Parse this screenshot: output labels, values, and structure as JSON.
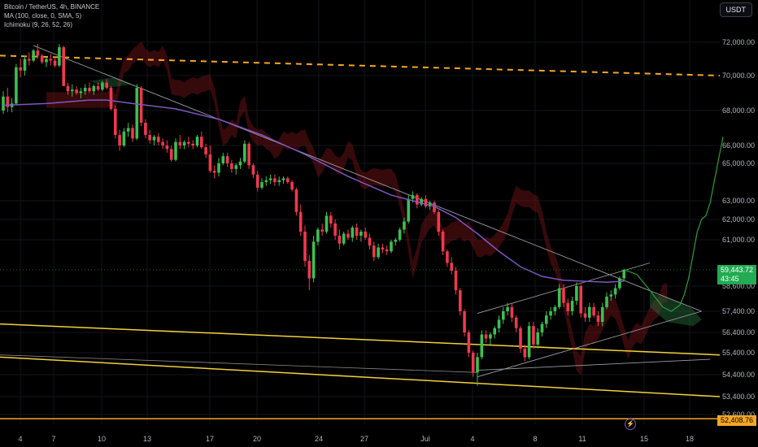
{
  "legend": {
    "symbol": "Bitcoin / TetherUS, 4h, BINANCE",
    "ma": "MA (100, close, 0, SMA, 5)",
    "ichimoku": "Ichimoku (9, 26, 52, 26)"
  },
  "currency_button": "USDT",
  "current_price": {
    "price": "59,443.72",
    "countdown": "43:45"
  },
  "level_label": "52,408.76",
  "colors": {
    "up": "#26a69a",
    "down": "#ef5350",
    "green_candle": "#3dbf50",
    "red_candle": "#f0384e",
    "ma": "#7e57c2",
    "yellow": "#f2d13b",
    "orange": "#f5a623"
  },
  "icons": {
    "alert": "lightning-icon"
  },
  "chart_data": {
    "type": "candlestick",
    "x_ticks": [
      "4",
      "7",
      "10",
      "13",
      "17",
      "20",
      "24",
      "27",
      "Jul",
      "4",
      "8",
      "11",
      "15",
      "18"
    ],
    "y_ticks": [
      "72,000.00",
      "70,000.00",
      "68,000.00",
      "66,000.00",
      "65,000.00",
      "63,000.00",
      "62,000.00",
      "61,000.00",
      "58,600.00",
      "57,400.00",
      "56,400.00",
      "55,400.00",
      "54,400.00",
      "53,400.00",
      "52,600.00"
    ],
    "price_axis_anchors": [
      [
        72000,
        52
      ],
      [
        70000,
        93
      ],
      [
        68000,
        136
      ],
      [
        66000,
        179
      ],
      [
        65000,
        201
      ],
      [
        63000,
        247
      ],
      [
        62000,
        270
      ],
      [
        61000,
        295
      ],
      [
        58600,
        352
      ],
      [
        57400,
        383
      ],
      [
        56400,
        409
      ],
      [
        55400,
        434
      ],
      [
        54400,
        461
      ],
      [
        53400,
        488
      ],
      [
        52600,
        510
      ]
    ],
    "date_axis_anchors": [
      [
        "4",
        25
      ],
      [
        "7",
        66
      ],
      [
        "10",
        125
      ],
      [
        "13",
        181
      ],
      [
        "17",
        258
      ],
      [
        "20",
        316
      ],
      [
        "24",
        392
      ],
      [
        "27",
        448
      ],
      [
        "Jul",
        523
      ],
      [
        "4",
        581
      ],
      [
        "8",
        658
      ],
      [
        "11",
        716
      ],
      [
        "15",
        792
      ],
      [
        "18",
        848
      ]
    ],
    "candles": [
      [
        0,
        68000,
        69100,
        67800,
        68800
      ],
      [
        1,
        68800,
        69300,
        67900,
        68200
      ],
      [
        2,
        68200,
        68700,
        67900,
        68400
      ],
      [
        3,
        68400,
        70700,
        68300,
        70500
      ],
      [
        4,
        70500,
        71000,
        69900,
        70300
      ],
      [
        5,
        70300,
        71200,
        70000,
        71000
      ],
      [
        6,
        71000,
        71400,
        70600,
        70900
      ],
      [
        7,
        70900,
        71600,
        70800,
        71500
      ],
      [
        8,
        71500,
        71900,
        71000,
        71200
      ],
      [
        9,
        71200,
        71300,
        70700,
        70800
      ],
      [
        10,
        70800,
        71100,
        70500,
        71000
      ],
      [
        11,
        71000,
        71300,
        70600,
        70900
      ],
      [
        12,
        70900,
        71100,
        70500,
        70600
      ],
      [
        13,
        70600,
        71900,
        70500,
        71700
      ],
      [
        14,
        71700,
        71800,
        69400,
        69400
      ],
      [
        15,
        69400,
        69600,
        68900,
        69100
      ],
      [
        16,
        69100,
        69500,
        68800,
        69200
      ],
      [
        17,
        69200,
        69400,
        68900,
        69000
      ],
      [
        18,
        69000,
        69300,
        68700,
        69100
      ],
      [
        19,
        69100,
        69500,
        68900,
        69300
      ],
      [
        20,
        69300,
        69600,
        69000,
        69100
      ],
      [
        21,
        69100,
        69500,
        68900,
        69400
      ],
      [
        22,
        69400,
        69600,
        69100,
        69200
      ],
      [
        23,
        69200,
        69700,
        69100,
        69600
      ],
      [
        24,
        69600,
        69800,
        69200,
        69300
      ],
      [
        25,
        69300,
        69400,
        68000,
        68100
      ],
      [
        26,
        68100,
        68300,
        66400,
        66600
      ],
      [
        27,
        66600,
        66900,
        65700,
        66000
      ],
      [
        28,
        66000,
        67000,
        65900,
        66800
      ],
      [
        29,
        66800,
        67300,
        66500,
        67000
      ],
      [
        30,
        67000,
        67200,
        66200,
        66400
      ],
      [
        31,
        66400,
        69500,
        66300,
        69300
      ],
      [
        32,
        69300,
        69400,
        67100,
        67300
      ],
      [
        33,
        67300,
        67500,
        66400,
        66600
      ],
      [
        34,
        66600,
        66900,
        66100,
        66300
      ],
      [
        35,
        66300,
        66600,
        66000,
        66500
      ],
      [
        36,
        66500,
        66700,
        66000,
        66200
      ],
      [
        37,
        66200,
        66400,
        65800,
        66000
      ],
      [
        38,
        66000,
        66300,
        65600,
        65800
      ],
      [
        39,
        65800,
        66000,
        65100,
        65200
      ],
      [
        40,
        65200,
        66400,
        65100,
        66200
      ],
      [
        41,
        66200,
        66600,
        65800,
        66000
      ],
      [
        42,
        66000,
        66300,
        65800,
        66200
      ],
      [
        43,
        66200,
        66500,
        65900,
        66100
      ],
      [
        44,
        66100,
        66300,
        65800,
        66000
      ],
      [
        45,
        66000,
        66600,
        65900,
        66500
      ],
      [
        46,
        66500,
        66800,
        65800,
        65900
      ],
      [
        47,
        65900,
        66100,
        65300,
        65500
      ],
      [
        48,
        65500,
        66000,
        64500,
        64600
      ],
      [
        49,
        64600,
        64900,
        64200,
        64500
      ],
      [
        50,
        64500,
        65300,
        64300,
        65000
      ],
      [
        51,
        65000,
        65600,
        64900,
        65400
      ],
      [
        52,
        65400,
        65600,
        64800,
        65000
      ],
      [
        53,
        65000,
        65200,
        64500,
        64700
      ],
      [
        54,
        64700,
        65000,
        64400,
        64900
      ],
      [
        55,
        64900,
        65300,
        64700,
        65100
      ],
      [
        56,
        65100,
        66300,
        65000,
        66100
      ],
      [
        57,
        66100,
        66200,
        64700,
        64900
      ],
      [
        58,
        64900,
        65000,
        64200,
        64400
      ],
      [
        59,
        64400,
        64600,
        63500,
        63700
      ],
      [
        60,
        63700,
        64200,
        63600,
        64000
      ],
      [
        61,
        64000,
        64300,
        63800,
        64100
      ],
      [
        62,
        64100,
        64400,
        63900,
        64200
      ],
      [
        63,
        64200,
        64400,
        63800,
        64000
      ],
      [
        64,
        64000,
        64300,
        63800,
        64100
      ],
      [
        65,
        64100,
        64300,
        63900,
        64200
      ],
      [
        66,
        64200,
        64300,
        63900,
        64000
      ],
      [
        67,
        64000,
        64100,
        63500,
        63600
      ],
      [
        68,
        63600,
        63700,
        62200,
        62400
      ],
      [
        69,
        62400,
        62800,
        61200,
        61400
      ],
      [
        70,
        61400,
        61700,
        59600,
        59900
      ],
      [
        71,
        59900,
        60200,
        58400,
        59000
      ],
      [
        72,
        59000,
        61200,
        58800,
        60900
      ],
      [
        73,
        60900,
        61600,
        60700,
        61500
      ],
      [
        74,
        61500,
        61800,
        61200,
        61400
      ],
      [
        75,
        61400,
        62400,
        61300,
        62200
      ],
      [
        76,
        62200,
        62400,
        61600,
        61800
      ],
      [
        77,
        61800,
        62000,
        61000,
        61200
      ],
      [
        78,
        61200,
        61500,
        60500,
        60800
      ],
      [
        79,
        60800,
        61400,
        60700,
        61300
      ],
      [
        80,
        61300,
        61500,
        61000,
        61100
      ],
      [
        81,
        61100,
        61700,
        60900,
        61600
      ],
      [
        82,
        61600,
        61800,
        61000,
        61200
      ],
      [
        83,
        61200,
        61500,
        60900,
        61400
      ],
      [
        84,
        61400,
        61600,
        61000,
        61100
      ],
      [
        85,
        61100,
        61300,
        60500,
        60700
      ],
      [
        86,
        60700,
        60900,
        59900,
        60100
      ],
      [
        87,
        60100,
        60800,
        60000,
        60600
      ],
      [
        88,
        60600,
        60800,
        60300,
        60500
      ],
      [
        89,
        60500,
        60700,
        60200,
        60400
      ],
      [
        90,
        60400,
        61000,
        60300,
        60900
      ],
      [
        91,
        60900,
        61100,
        60700,
        61000
      ],
      [
        92,
        61000,
        61600,
        60900,
        61500
      ],
      [
        93,
        61500,
        62100,
        61300,
        61900
      ],
      [
        94,
        61900,
        63300,
        61800,
        63100
      ],
      [
        95,
        63100,
        63500,
        62900,
        63300
      ],
      [
        96,
        63300,
        63400,
        62600,
        62800
      ],
      [
        97,
        62800,
        63200,
        62700,
        63100
      ],
      [
        98,
        63100,
        63300,
        62600,
        62700
      ],
      [
        99,
        62700,
        63000,
        62500,
        62900
      ],
      [
        100,
        62900,
        63000,
        62300,
        62400
      ],
      [
        101,
        62400,
        62500,
        61200,
        61400
      ],
      [
        102,
        61400,
        61500,
        60200,
        60400
      ],
      [
        103,
        60400,
        60500,
        59600,
        59800
      ],
      [
        104,
        59800,
        60100,
        59200,
        59400
      ],
      [
        105,
        59400,
        59600,
        58200,
        58400
      ],
      [
        106,
        58400,
        58500,
        57200,
        57400
      ],
      [
        107,
        57400,
        57500,
        56200,
        56400
      ],
      [
        108,
        56400,
        56500,
        55200,
        55400
      ],
      [
        109,
        55400,
        55500,
        54300,
        54500
      ],
      [
        110,
        54500,
        55400,
        53900,
        55200
      ],
      [
        111,
        55200,
        56500,
        55100,
        56300
      ],
      [
        112,
        56300,
        56500,
        55900,
        56100
      ],
      [
        113,
        56100,
        56400,
        55800,
        56300
      ],
      [
        114,
        56300,
        56700,
        56100,
        56600
      ],
      [
        115,
        56600,
        57200,
        56400,
        57000
      ],
      [
        116,
        57000,
        57600,
        56800,
        57400
      ],
      [
        117,
        57400,
        57800,
        57200,
        57600
      ],
      [
        118,
        57600,
        57800,
        56900,
        57100
      ],
      [
        119,
        57100,
        57200,
        56400,
        56600
      ],
      [
        120,
        56600,
        56700,
        55400,
        55600
      ],
      [
        121,
        55600,
        55800,
        55000,
        55200
      ],
      [
        122,
        55200,
        56900,
        55100,
        56700
      ],
      [
        123,
        56700,
        56900,
        55600,
        55800
      ],
      [
        124,
        55800,
        56600,
        55600,
        56400
      ],
      [
        125,
        56400,
        56900,
        56200,
        56800
      ],
      [
        126,
        56800,
        57400,
        56600,
        57200
      ],
      [
        127,
        57200,
        57600,
        57000,
        57400
      ],
      [
        128,
        57400,
        57700,
        57200,
        57600
      ],
      [
        129,
        57600,
        58700,
        57500,
        58500
      ],
      [
        130,
        58500,
        58700,
        57600,
        57800
      ],
      [
        131,
        57800,
        58000,
        57200,
        57400
      ],
      [
        132,
        57400,
        58100,
        57200,
        57900
      ],
      [
        133,
        57900,
        58800,
        57700,
        58600
      ],
      [
        134,
        58600,
        58700,
        57100,
        57300
      ],
      [
        135,
        57300,
        57600,
        56900,
        57100
      ],
      [
        136,
        57100,
        57800,
        56900,
        57600
      ],
      [
        137,
        57600,
        57800,
        57100,
        57200
      ],
      [
        138,
        57200,
        57400,
        56700,
        56900
      ],
      [
        139,
        56900,
        57800,
        56700,
        57600
      ],
      [
        140,
        57600,
        58300,
        57500,
        58100
      ],
      [
        141,
        58100,
        58400,
        57900,
        58200
      ],
      [
        142,
        58200,
        58700,
        58000,
        58500
      ],
      [
        143,
        58500,
        59100,
        58400,
        59000
      ],
      [
        144,
        59000,
        59500,
        58900,
        59443.72
      ]
    ],
    "ma_100": [
      [
        0,
        68300
      ],
      [
        10,
        68400
      ],
      [
        20,
        68600
      ],
      [
        24,
        68600
      ],
      [
        30,
        68400
      ],
      [
        40,
        68100
      ],
      [
        50,
        67500
      ],
      [
        60,
        66600
      ],
      [
        70,
        65500
      ],
      [
        80,
        64300
      ],
      [
        90,
        63300
      ],
      [
        100,
        62700
      ],
      [
        105,
        62100
      ],
      [
        110,
        61300
      ],
      [
        115,
        60400
      ],
      [
        120,
        59600
      ],
      [
        125,
        59100
      ],
      [
        130,
        58900
      ],
      [
        135,
        58850
      ],
      [
        140,
        58800
      ],
      [
        144,
        58850
      ]
    ],
    "projection_path": [
      [
        144,
        59450
      ],
      [
        147,
        59200
      ],
      [
        150,
        58400
      ],
      [
        153,
        57600
      ],
      [
        155,
        57400
      ],
      [
        157,
        57700
      ],
      [
        158,
        58200
      ],
      [
        159,
        59000
      ],
      [
        160,
        60200
      ],
      [
        161,
        61400
      ],
      [
        162,
        62000
      ],
      [
        163,
        62200
      ],
      [
        164,
        62900
      ],
      [
        165,
        64100
      ],
      [
        166,
        65300
      ],
      [
        167,
        66500
      ]
    ],
    "trendlines": [
      {
        "name": "upper-descending-line",
        "from": [
          7,
          71800
        ],
        "to": [
          162,
          57400
        ]
      },
      {
        "name": "channel-upper",
        "from": [
          110,
          57300
        ],
        "to": [
          150,
          59800
        ]
      },
      {
        "name": "channel-lower",
        "from": [
          110,
          54300
        ],
        "to": [
          162,
          57400
        ]
      },
      {
        "name": "gray-horizontal",
        "from": [
          110,
          54600
        ],
        "to": [
          164,
          55100
        ]
      }
    ],
    "yellow_lines": [
      {
        "from_y": 56800,
        "to_y": 55300
      },
      {
        "from_y": 55200,
        "to_y": 53400
      }
    ],
    "orange_dashed": {
      "from_y": 71200,
      "to_y": 70000
    },
    "orange_level": 52408.76,
    "current_price_value": 59443.72
  }
}
